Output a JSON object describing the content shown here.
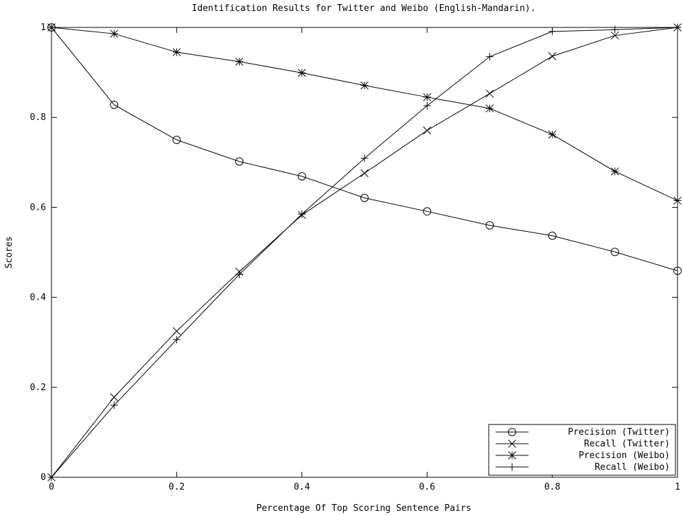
{
  "chart_data": {
    "type": "line",
    "title": "Identification Results for Twitter and Weibo (English-Mandarin).",
    "xlabel": "Percentage Of Top Scoring Sentence Pairs",
    "ylabel": "Scores",
    "xlim": [
      0,
      1
    ],
    "ylim": [
      0,
      1
    ],
    "xticks": [
      "0",
      "0.2",
      "0.4",
      "0.6",
      "0.8",
      "1"
    ],
    "yticks": [
      "0",
      "0.2",
      "0.4",
      "0.6",
      "0.8",
      "1"
    ],
    "grid": false,
    "legend_position": "bottom-right",
    "x": [
      0,
      0.1,
      0.2,
      0.3,
      0.4,
      0.5,
      0.6,
      0.7,
      0.8,
      0.9,
      1.0
    ],
    "series": [
      {
        "name": "Precision (Twitter)",
        "marker": "circle",
        "values": [
          1.0,
          0.828,
          0.75,
          0.702,
          0.669,
          0.621,
          0.591,
          0.56,
          0.537,
          0.501,
          0.459
        ]
      },
      {
        "name": "Recall (Twitter)",
        "marker": "x",
        "values": [
          0.0,
          0.178,
          0.325,
          0.457,
          0.583,
          0.676,
          0.771,
          0.853,
          0.936,
          0.982,
          1.0
        ]
      },
      {
        "name": "Precision (Weibo)",
        "marker": "asterisk",
        "values": [
          1.0,
          0.986,
          0.945,
          0.924,
          0.899,
          0.871,
          0.845,
          0.82,
          0.762,
          0.68,
          0.615
        ]
      },
      {
        "name": "Recall (Weibo)",
        "marker": "plus",
        "values": [
          0.0,
          0.16,
          0.306,
          0.451,
          0.585,
          0.709,
          0.826,
          0.935,
          0.991,
          0.995,
          1.0
        ]
      }
    ]
  }
}
